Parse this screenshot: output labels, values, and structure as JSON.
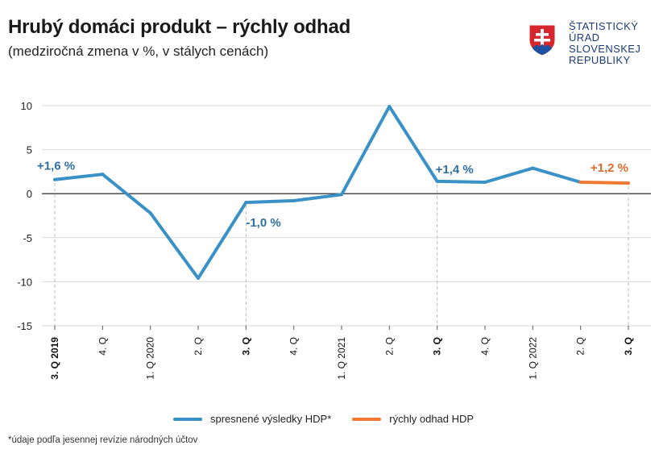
{
  "header": {
    "title": "Hrubý domáci produkt – rýchly odhad",
    "subtitle": "(medziročná zmena v %, v stálych cenách)"
  },
  "logo": {
    "lines": [
      "ŠTATISTICKÝ",
      "ÚRAD",
      "SLOVENSKEJ",
      "REPUBLIKY"
    ],
    "text_color": "#1b3b7a",
    "shield_colors": {
      "red": "#d7262e",
      "blue": "#1f4fa0",
      "white": "#ffffff"
    }
  },
  "chart_data": {
    "type": "line",
    "categories": [
      "3. Q 2019",
      "4. Q",
      "1. Q 2020",
      "2. Q",
      "3. Q",
      "4. Q",
      "1. Q 2021",
      "2. Q",
      "3. Q",
      "4. Q",
      "1. Q 2022",
      "2. Q",
      "3. Q"
    ],
    "bold_categories": [
      0,
      4,
      8,
      12
    ],
    "highlight_gridlines": [
      0,
      4,
      8,
      12
    ],
    "ylim": [
      -15,
      10
    ],
    "yticks": [
      10,
      5,
      0,
      -5,
      -10,
      -15
    ],
    "grid": true,
    "series": [
      {
        "name": "spresnené výsledky HDP*",
        "color": "#3a91c6",
        "values": [
          1.6,
          2.2,
          -2.2,
          -9.6,
          -1.0,
          -0.8,
          -0.1,
          9.9,
          1.4,
          1.3,
          2.9,
          1.3,
          null
        ]
      },
      {
        "name": "rýchly odhad HDP",
        "color": "#ee7a33",
        "values": [
          null,
          null,
          null,
          null,
          null,
          null,
          null,
          null,
          null,
          null,
          null,
          1.3,
          1.2
        ]
      }
    ],
    "annotations": [
      {
        "index": 0,
        "text": "+1,6 %",
        "color": "#2f6fa3"
      },
      {
        "index": 4,
        "text": "-1,0 %",
        "color": "#2f6fa3"
      },
      {
        "index": 8,
        "text": "+1,4 %",
        "color": "#2f6fa3"
      },
      {
        "index": 12,
        "text": "+1,2 %",
        "color": "#e0692a"
      }
    ],
    "legend_position": "bottom-center"
  },
  "legend": {
    "items": [
      {
        "label": "spresnené výsledky HDP*",
        "color": "#3a91c6"
      },
      {
        "label": "rýchly odhad HDP",
        "color": "#ee7a33"
      }
    ]
  },
  "footnote": "*údaje podľa jesennej revízie národných účtov"
}
